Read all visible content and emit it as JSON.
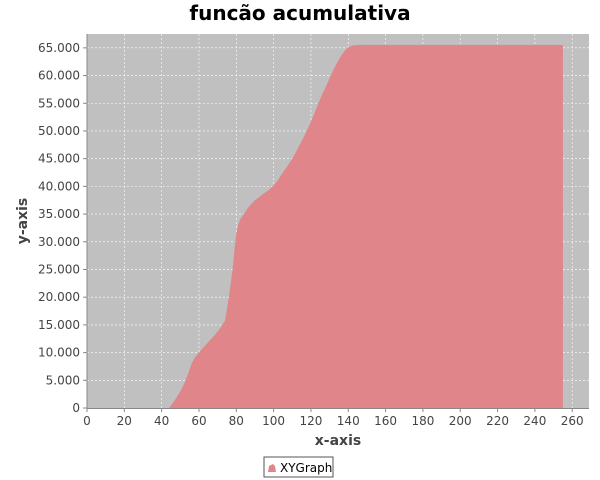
{
  "chart_data": {
    "type": "area",
    "title": "funcão acumulativa",
    "xlabel": "x-axis",
    "ylabel": "y-axis",
    "xlim": [
      0,
      269
    ],
    "ylim": [
      0,
      67500
    ],
    "xticks": [
      0,
      20,
      40,
      60,
      80,
      100,
      120,
      140,
      160,
      180,
      200,
      220,
      240,
      260
    ],
    "xtick_labels": [
      "0",
      "20",
      "40",
      "60",
      "80",
      "100",
      "120",
      "140",
      "160",
      "180",
      "200",
      "220",
      "240",
      "260"
    ],
    "yticks": [
      0,
      5000,
      10000,
      15000,
      20000,
      25000,
      30000,
      35000,
      40000,
      45000,
      50000,
      55000,
      60000,
      65000
    ],
    "ytick_labels": [
      "0",
      "5.000",
      "10.000",
      "15.000",
      "20.000",
      "25.000",
      "30.000",
      "35.000",
      "40.000",
      "45.000",
      "50.000",
      "55.000",
      "60.000",
      "65.000"
    ],
    "grid": true,
    "legend_position": "bottom-center",
    "series": [
      {
        "name": "XYGraph",
        "color": "#e08589",
        "x": [
          0,
          44,
          46,
          48,
          50,
          52,
          54,
          56,
          58,
          60,
          62,
          64,
          66,
          68,
          70,
          72,
          74,
          76,
          78,
          79,
          80,
          81,
          82,
          84,
          86,
          88,
          90,
          92,
          94,
          96,
          98,
          100,
          102,
          104,
          106,
          108,
          110,
          112,
          114,
          116,
          118,
          120,
          122,
          124,
          126,
          128,
          130,
          132,
          134,
          136,
          138,
          140,
          142,
          144,
          146,
          148,
          150,
          152,
          154,
          156,
          158,
          160,
          180,
          200,
          220,
          240,
          255
        ],
        "y": [
          0,
          0,
          900,
          1900,
          3000,
          4300,
          6000,
          8000,
          9200,
          10000,
          10800,
          11500,
          12300,
          13000,
          13800,
          14700,
          15800,
          20000,
          25000,
          28500,
          31500,
          33000,
          34000,
          35000,
          36000,
          36800,
          37500,
          38000,
          38500,
          39000,
          39500,
          40200,
          41000,
          42000,
          43000,
          44000,
          45000,
          46200,
          47500,
          48800,
          50200,
          51700,
          53300,
          55000,
          56600,
          58000,
          59500,
          61000,
          62300,
          63500,
          64400,
          65100,
          65400,
          65500,
          65536,
          65536,
          65536,
          65536,
          65536,
          65536,
          65536,
          65536,
          65536,
          65536,
          65536,
          65536,
          65536
        ]
      }
    ]
  },
  "colors": {
    "plot_background": "#c0c0c0",
    "grid": "#ffffff",
    "series": "#e08589",
    "axis_text": "#444444"
  }
}
